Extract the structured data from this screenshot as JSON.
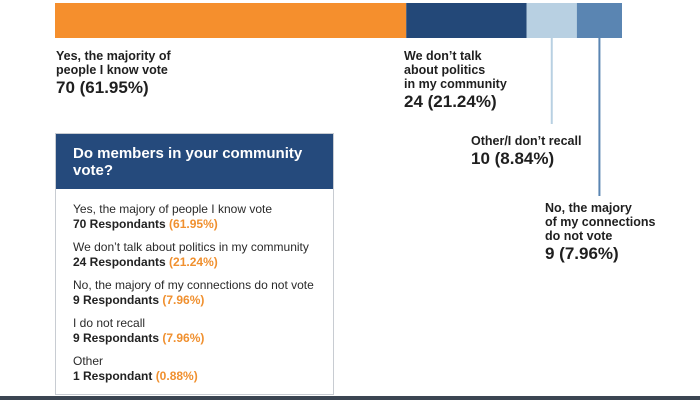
{
  "chart_data": {
    "type": "bar",
    "orientation": "horizontal-stacked",
    "title": "",
    "segments": [
      {
        "label": "Yes, the majority of people I know vote",
        "count": 70,
        "percent": 61.95,
        "color": "#f58f2d"
      },
      {
        "label": "We don't talk about politics in my community",
        "count": 24,
        "percent": 21.24,
        "color": "#234878"
      },
      {
        "label": "Other/I don't recall",
        "count": 10,
        "percent": 8.84,
        "color": "#b8d0e2"
      },
      {
        "label": "No, the majory of my connections do not vote",
        "count": 9,
        "percent": 7.96,
        "color": "#5a85b2"
      }
    ]
  },
  "callouts": {
    "yes": {
      "line1": "Yes, the majority of",
      "line2": "people I know vote",
      "value": "70 (61.95%)"
    },
    "dont": {
      "line1": "We don’t talk",
      "line2": "about politics",
      "line3": "in my community",
      "value": "24 (21.24%)"
    },
    "other": {
      "line1": "Other/I don’t recall",
      "value": "10 (8.84%)"
    },
    "no": {
      "line1": "No, the majory",
      "line2": "of my connections",
      "line3": "do not vote",
      "value": "9 (7.96%)"
    }
  },
  "card": {
    "title": "Do members in your community vote?",
    "items": [
      {
        "question": "Yes, the majory of people I know vote",
        "count": "70 Respondants",
        "percent": "(61.95%)"
      },
      {
        "question": "We don’t talk about politics in my community",
        "count": "24 Respondants",
        "percent": "(21.24%)"
      },
      {
        "question": "No, the majory of my connections do not vote",
        "count": "9 Respondants",
        "percent": "(7.96%)"
      },
      {
        "question": "I do not recall",
        "count": "9 Respondants",
        "percent": "(7.96%)"
      },
      {
        "question": "Other",
        "count": "1 Respondant",
        "percent": "(0.88%)"
      }
    ]
  },
  "colors": {
    "card_header": "#254a7c",
    "percent_text": "#f0902f",
    "leader_line_other": "#b8d0e2",
    "leader_line_no": "#5a85b2"
  }
}
